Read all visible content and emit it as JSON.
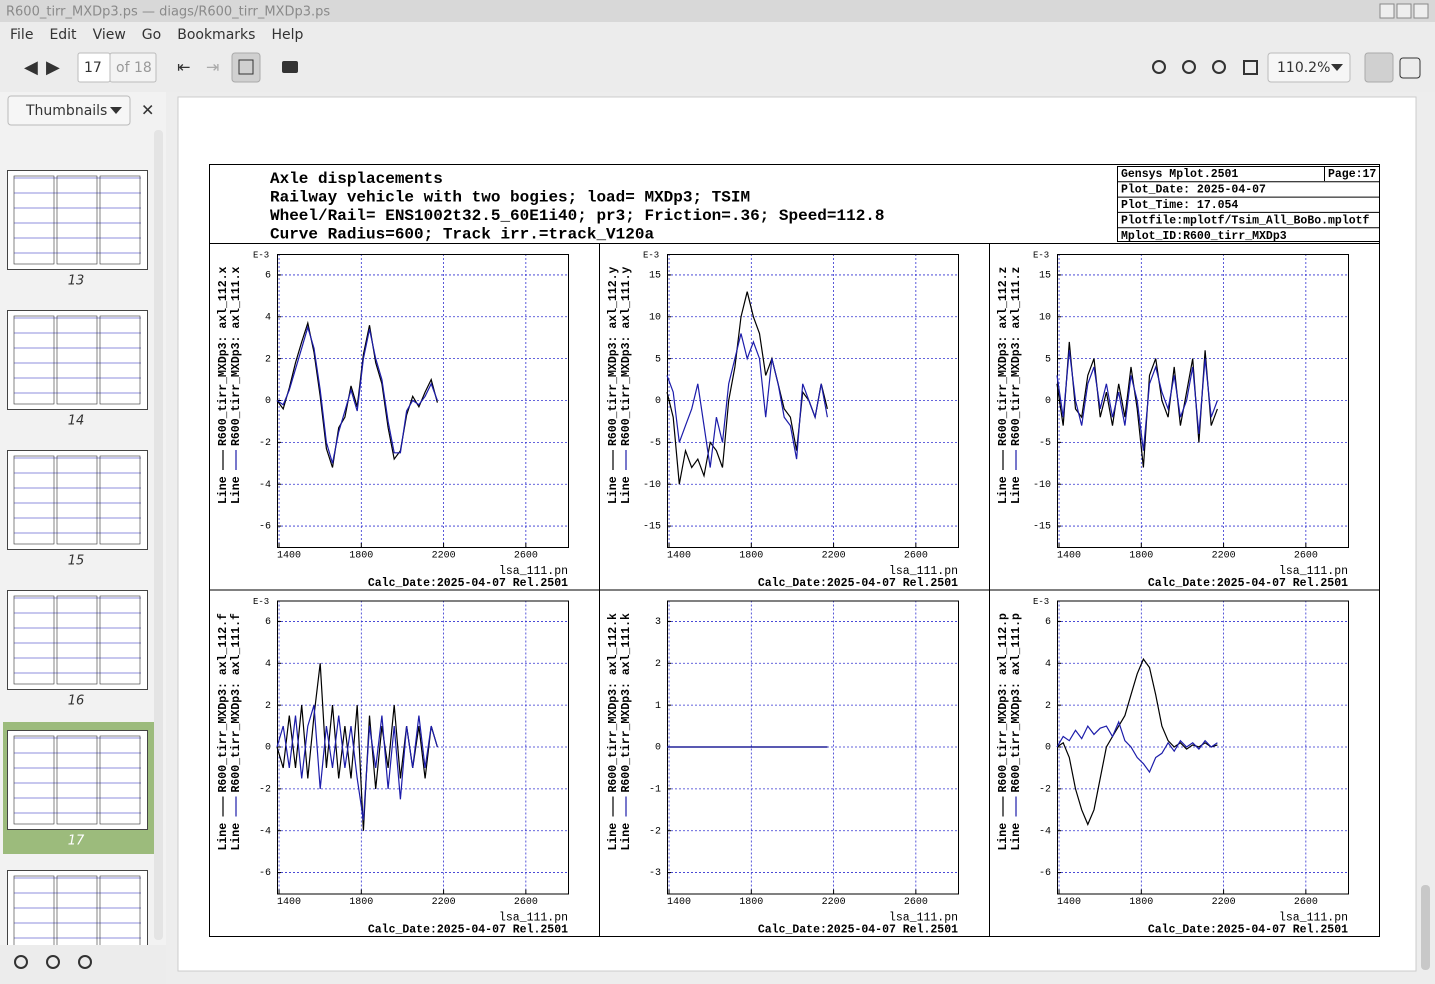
{
  "window": {
    "title": "R600_tirr_MXDp3.ps — diags/R600_tirr_MXDp3.ps"
  },
  "menu": [
    "File",
    "Edit",
    "View",
    "Go",
    "Bookmarks",
    "Help"
  ],
  "toolbar": {
    "page": "17",
    "page_count": "of 18",
    "zoom": "110.2%"
  },
  "sidebar": {
    "mode": "Thumbnails",
    "pages": [
      "13",
      "14",
      "15",
      "16",
      "17",
      "18"
    ],
    "selected": 4
  },
  "document": {
    "title_lines": [
      "Axle displacements",
      "Railway vehicle with two bogies; load= MXDp3; TSIM",
      "Wheel/Rail= ENS1002t32.5_60E1i40; pr3; Friction=.36; Speed=112.8",
      "Curve Radius=600; Track irr.=track_V120a"
    ],
    "info": {
      "program": "Gensys Mplot.2501",
      "page": "Page:17",
      "plot_date": "Plot_Date: 2025-04-07",
      "plot_time": "Plot_Time: 17.054",
      "plotfile": "Plotfile:mplotf/Tsim_All_BoBo.mplotf",
      "mplot_id": "Mplot_ID:R600_tirr_MXDp3"
    }
  },
  "chart_data": [
    {
      "type": "line",
      "legend_prefix": "Line",
      "y_scale_label": "E-3",
      "xlabel": "lsa_111.pn",
      "footer": "Calc_Date:2025-04-07 Rel.2501",
      "grid": true,
      "x": [
        1390,
        1420,
        1450,
        1480,
        1510,
        1540,
        1570,
        1600,
        1630,
        1660,
        1690,
        1720,
        1750,
        1780,
        1810,
        1840,
        1870,
        1900,
        1930,
        1960,
        1990,
        2020,
        2050,
        2080,
        2110,
        2140,
        2170
      ],
      "series": [
        {
          "name": "R600_tirr_MXDp3: axl_112.x",
          "color": "#000000",
          "values": [
            0,
            -0.4,
            0.6,
            1.8,
            2.8,
            3.7,
            2.3,
            0.2,
            -2.3,
            -3.2,
            -1.3,
            -0.8,
            0.7,
            -0.3,
            2.2,
            3.6,
            1.8,
            0.8,
            -1.3,
            -2.8,
            -2.4,
            -0.7,
            0.2,
            -0.3,
            0.4,
            1,
            -0.1
          ]
        },
        {
          "name": "R600_tirr_MXDp3: axl_111.x",
          "color": "#1c1caa",
          "values": [
            0,
            -0.2,
            0.5,
            1.5,
            2.5,
            3.5,
            2.5,
            0.5,
            -2,
            -3,
            -1.5,
            -0.5,
            0.5,
            -0.5,
            2,
            3.4,
            2,
            1,
            -1,
            -2.5,
            -2.5,
            -0.5,
            0,
            -0.2,
            0.2,
            0.8,
            0
          ]
        }
      ],
      "xlim": [
        1390,
        2805
      ],
      "ylim": [
        -7,
        7
      ],
      "xticks": [
        1400,
        1800,
        2200,
        2600
      ],
      "yticks": [
        -6,
        -4,
        -2,
        0,
        2,
        4,
        6
      ]
    },
    {
      "type": "line",
      "legend_prefix": "Line",
      "y_scale_label": "E-3",
      "xlabel": "lsa_111.pn",
      "footer": "Calc_Date:2025-04-07 Rel.2501",
      "grid": true,
      "x": [
        1390,
        1420,
        1450,
        1480,
        1510,
        1540,
        1570,
        1600,
        1630,
        1660,
        1690,
        1720,
        1750,
        1780,
        1810,
        1840,
        1870,
        1900,
        1930,
        1960,
        1990,
        2020,
        2050,
        2080,
        2110,
        2140,
        2170
      ],
      "series": [
        {
          "name": "R600_tirr_MXDp3: axl_112.y",
          "color": "#000000",
          "values": [
            1,
            -2,
            -10,
            -6,
            -8,
            -7,
            -9,
            -5,
            -6,
            -8,
            0,
            4,
            10,
            13,
            10,
            8,
            3,
            5,
            2,
            -1,
            -2,
            -6,
            1,
            0,
            -2,
            2,
            -1
          ]
        },
        {
          "name": "R600_tirr_MXDp3: axl_111.y",
          "color": "#1c1caa",
          "values": [
            3,
            1,
            -5,
            -3,
            -1,
            2,
            -3,
            -8,
            -2,
            -5,
            2,
            5,
            8,
            5,
            7,
            5,
            -2,
            5,
            2,
            -2,
            -3,
            -7,
            2,
            0,
            -2,
            2,
            -2
          ]
        }
      ],
      "xlim": [
        1390,
        2805
      ],
      "ylim": [
        -17.5,
        17.5
      ],
      "xticks": [
        1400,
        1800,
        2200,
        2600
      ],
      "yticks": [
        -15,
        -10,
        -5,
        0,
        5,
        10,
        15
      ]
    },
    {
      "type": "line",
      "legend_prefix": "Line",
      "y_scale_label": "E-3",
      "xlabel": "lsa_111.pn",
      "footer": "Calc_Date:2025-04-07 Rel.2501",
      "grid": true,
      "x": [
        1390,
        1420,
        1450,
        1480,
        1510,
        1540,
        1570,
        1600,
        1630,
        1660,
        1690,
        1720,
        1750,
        1780,
        1810,
        1840,
        1870,
        1900,
        1930,
        1960,
        1990,
        2020,
        2050,
        2080,
        2110,
        2140,
        2170
      ],
      "series": [
        {
          "name": "R600_tirr_MXDp3: axl_112.z",
          "color": "#000000",
          "values": [
            2,
            -3,
            7,
            -1,
            -2,
            3,
            5,
            -2,
            1,
            -3,
            2,
            -2,
            4,
            -1,
            -8,
            3,
            5,
            0,
            -2,
            4,
            -3,
            1,
            5,
            -5,
            6,
            -3,
            -1
          ]
        },
        {
          "name": "R600_tirr_MXDp3: axl_111.z",
          "color": "#1c1caa",
          "values": [
            3,
            -2,
            6,
            0,
            -3,
            2,
            4,
            -1,
            2,
            -2,
            1,
            -3,
            3,
            0,
            -6,
            2,
            4,
            1,
            -1,
            3,
            -2,
            0,
            4,
            -4,
            5,
            -2,
            0
          ]
        }
      ],
      "xlim": [
        1390,
        2805
      ],
      "ylim": [
        -17.5,
        17.5
      ],
      "xticks": [
        1400,
        1800,
        2200,
        2600
      ],
      "yticks": [
        -15,
        -10,
        -5,
        0,
        5,
        10,
        15
      ]
    },
    {
      "type": "line",
      "legend_prefix": "Line",
      "y_scale_label": "E-3",
      "xlabel": "lsa_111.pn",
      "footer": "Calc_Date:2025-04-07 Rel.2501",
      "grid": true,
      "x": [
        1390,
        1420,
        1450,
        1480,
        1510,
        1540,
        1570,
        1600,
        1630,
        1660,
        1690,
        1720,
        1750,
        1780,
        1810,
        1840,
        1870,
        1900,
        1930,
        1960,
        1990,
        2020,
        2050,
        2080,
        2110,
        2140,
        2170
      ],
      "series": [
        {
          "name": "R600_tirr_MXDp3: axl_112.f",
          "color": "#000000",
          "values": [
            0,
            -1,
            1.5,
            -1,
            2,
            -1.5,
            1.5,
            4,
            -1,
            2,
            -1.5,
            1,
            -1.5,
            2,
            -4,
            1.5,
            -2,
            1,
            -1,
            2,
            -1.5,
            1,
            -1,
            1,
            -1.5,
            1,
            0
          ]
        },
        {
          "name": "R600_tirr_MXDp3: axl_111.f",
          "color": "#1c1caa",
          "values": [
            0,
            1,
            -1,
            1.5,
            -1.5,
            1,
            2,
            -2,
            1,
            -1,
            1.5,
            -1,
            1,
            -1.5,
            -3.5,
            1,
            -1,
            1.5,
            -2,
            1,
            -2.5,
            1,
            -1,
            1.5,
            -1,
            1,
            0
          ]
        }
      ],
      "xlim": [
        1390,
        2805
      ],
      "ylim": [
        -7,
        7
      ],
      "xticks": [
        1400,
        1800,
        2200,
        2600
      ],
      "yticks": [
        -6,
        -4,
        -2,
        0,
        2,
        4,
        6
      ]
    },
    {
      "type": "line",
      "legend_prefix": "Line",
      "xlabel": "lsa_111.pn",
      "footer": "Calc_Date:2025-04-07 Rel.2501",
      "grid": true,
      "x": [
        1390,
        1420,
        1450,
        1480,
        1510,
        1540,
        1570,
        1600,
        1630,
        1660,
        1690,
        1720,
        1750,
        1780,
        1810,
        1840,
        1870,
        1900,
        1930,
        1960,
        1990,
        2020,
        2050,
        2080,
        2110,
        2140,
        2170
      ],
      "series": [
        {
          "name": "R600_tirr_MXDp3: axl_112.k",
          "color": "#000000",
          "values": [
            0,
            0,
            0,
            0,
            0,
            0,
            0,
            0,
            0,
            0,
            0,
            0,
            0,
            0,
            0,
            0,
            0,
            0,
            0,
            0,
            0,
            0,
            0,
            0,
            0,
            0,
            0
          ]
        },
        {
          "name": "R600_tirr_MXDp3: axl_111.k",
          "color": "#1c1caa",
          "values": [
            0,
            0,
            0,
            0,
            0,
            0,
            0,
            0,
            0,
            0,
            0,
            0,
            0,
            0,
            0,
            0,
            0,
            0,
            0,
            0,
            0,
            0,
            0,
            0,
            0,
            0,
            0
          ]
        }
      ],
      "xlim": [
        1390,
        2805
      ],
      "ylim": [
        -3.5,
        3.5
      ],
      "xticks": [
        1400,
        1800,
        2200,
        2600
      ],
      "yticks": [
        -3,
        -2,
        -1,
        0,
        1,
        2,
        3
      ]
    },
    {
      "type": "line",
      "legend_prefix": "Line",
      "y_scale_label": "E-3",
      "xlabel": "lsa_111.pn",
      "footer": "Calc_Date:2025-04-07 Rel.2501",
      "grid": true,
      "x": [
        1390,
        1420,
        1450,
        1480,
        1510,
        1540,
        1570,
        1600,
        1630,
        1660,
        1690,
        1720,
        1750,
        1780,
        1810,
        1840,
        1870,
        1900,
        1930,
        1960,
        1990,
        2020,
        2050,
        2080,
        2110,
        2140,
        2170
      ],
      "series": [
        {
          "name": "R600_tirr_MXDp3: axl_112.p",
          "color": "#000000",
          "values": [
            0,
            0.2,
            -0.5,
            -2,
            -3,
            -3.7,
            -3,
            -1.5,
            0,
            0.5,
            1,
            1.5,
            2.5,
            3.5,
            4.2,
            3.8,
            2.5,
            1,
            0.3,
            0,
            0.2,
            -0.1,
            0.1,
            0,
            0.2,
            0,
            0.1
          ]
        },
        {
          "name": "R600_tirr_MXDp3: axl_111.p",
          "color": "#1c1caa",
          "values": [
            0,
            0.5,
            0.3,
            0.8,
            0.4,
            1,
            0.6,
            0.9,
            1,
            0.5,
            1.2,
            0.3,
            0,
            -0.5,
            -0.8,
            -1.2,
            -0.5,
            -0.3,
            0.2,
            -0.2,
            0.3,
            0,
            0.2,
            -0.1,
            0.3,
            0,
            0.2
          ]
        }
      ],
      "xlim": [
        1390,
        2805
      ],
      "ylim": [
        -7,
        7
      ],
      "xticks": [
        1400,
        1800,
        2200,
        2600
      ],
      "yticks": [
        -6,
        -4,
        -2,
        0,
        2,
        4,
        6
      ]
    }
  ]
}
